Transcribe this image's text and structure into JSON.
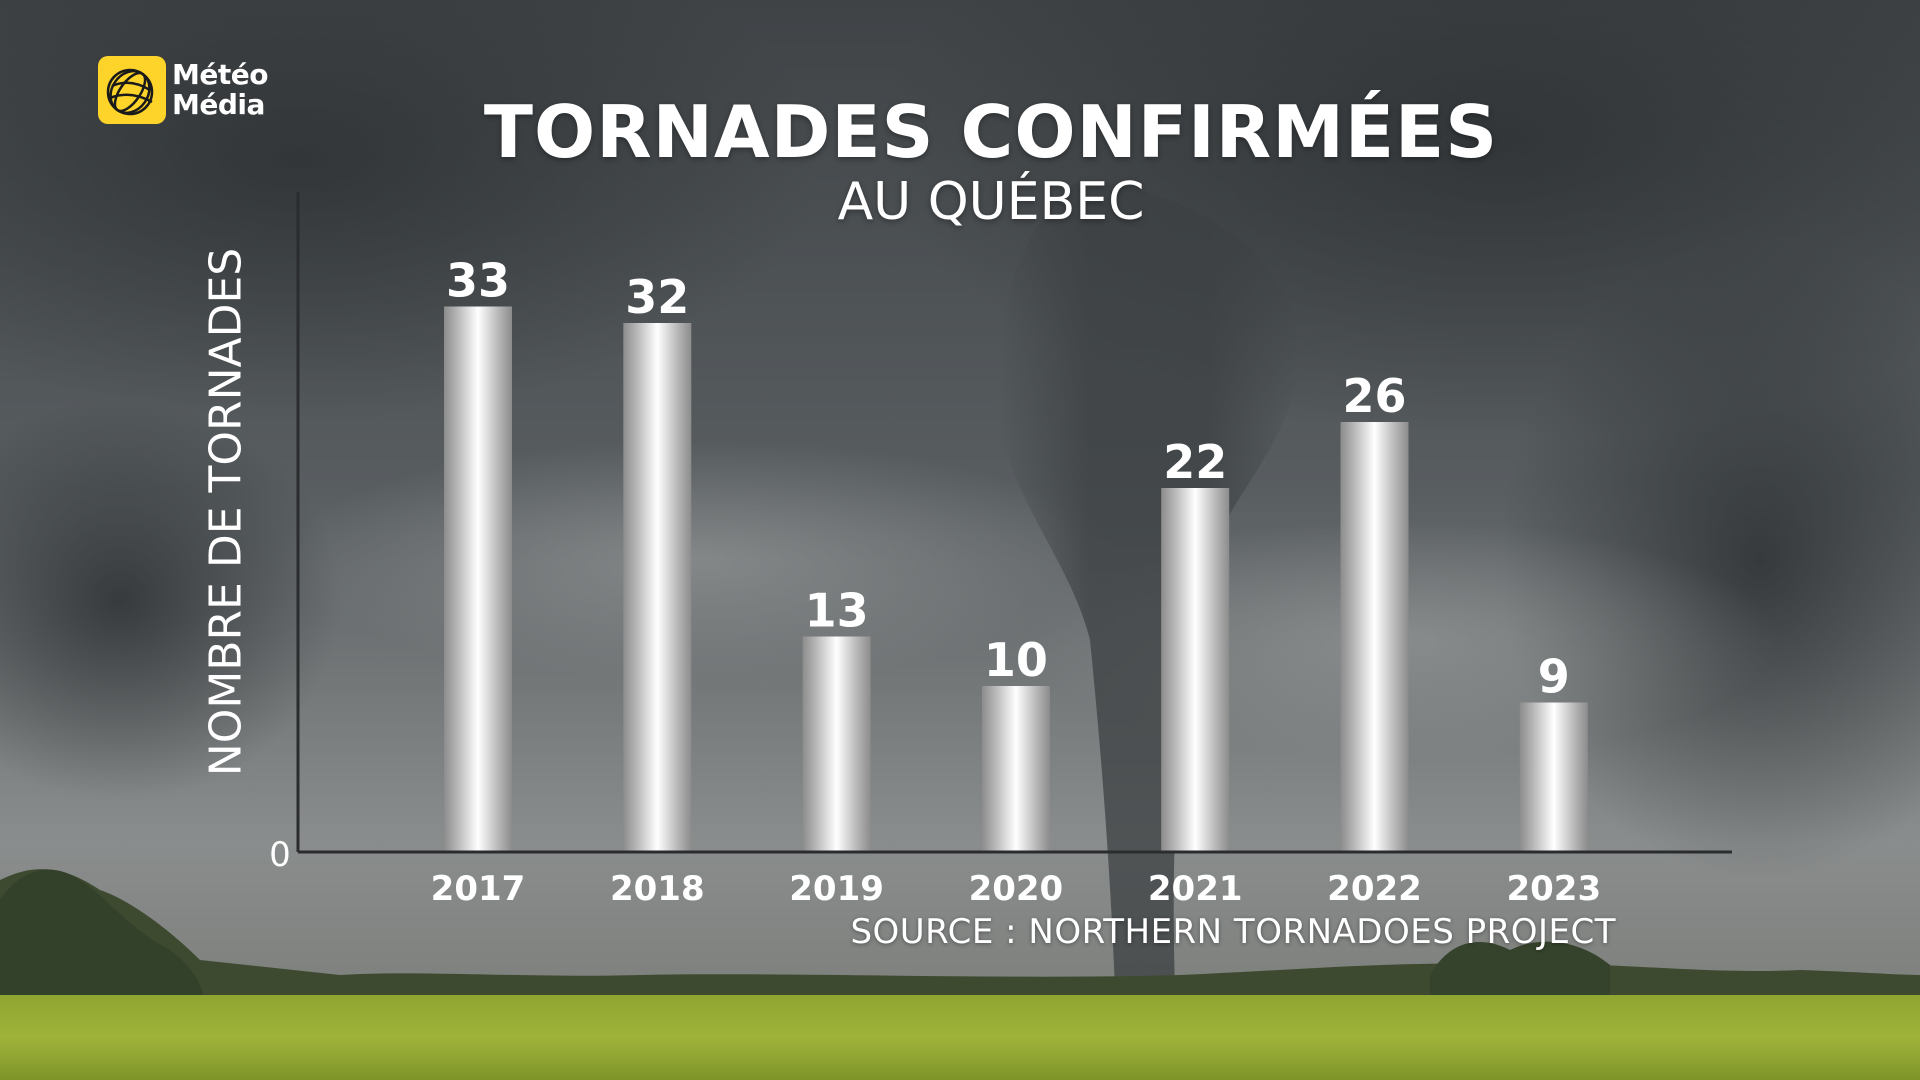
{
  "brand": {
    "name_line1": "Météo",
    "name_line2": "Média",
    "color": "#ffd42a"
  },
  "chart_data": {
    "type": "bar",
    "title": "TORNADES CONFIRMÉES",
    "subtitle": "AU QUÉBEC",
    "ylabel": "NOMBRE DE TORNADES",
    "xlabel": "",
    "categories": [
      "2017",
      "2018",
      "2019",
      "2020",
      "2021",
      "2022",
      "2023"
    ],
    "values": [
      33,
      32,
      13,
      10,
      22,
      26,
      9
    ],
    "y_tick_labels": [
      "0"
    ],
    "ylim": [
      0,
      40
    ],
    "grid": false,
    "bar_color": "#d9d9d9",
    "source": "SOURCE : NORTHERN TORNADOES PROJECT"
  }
}
